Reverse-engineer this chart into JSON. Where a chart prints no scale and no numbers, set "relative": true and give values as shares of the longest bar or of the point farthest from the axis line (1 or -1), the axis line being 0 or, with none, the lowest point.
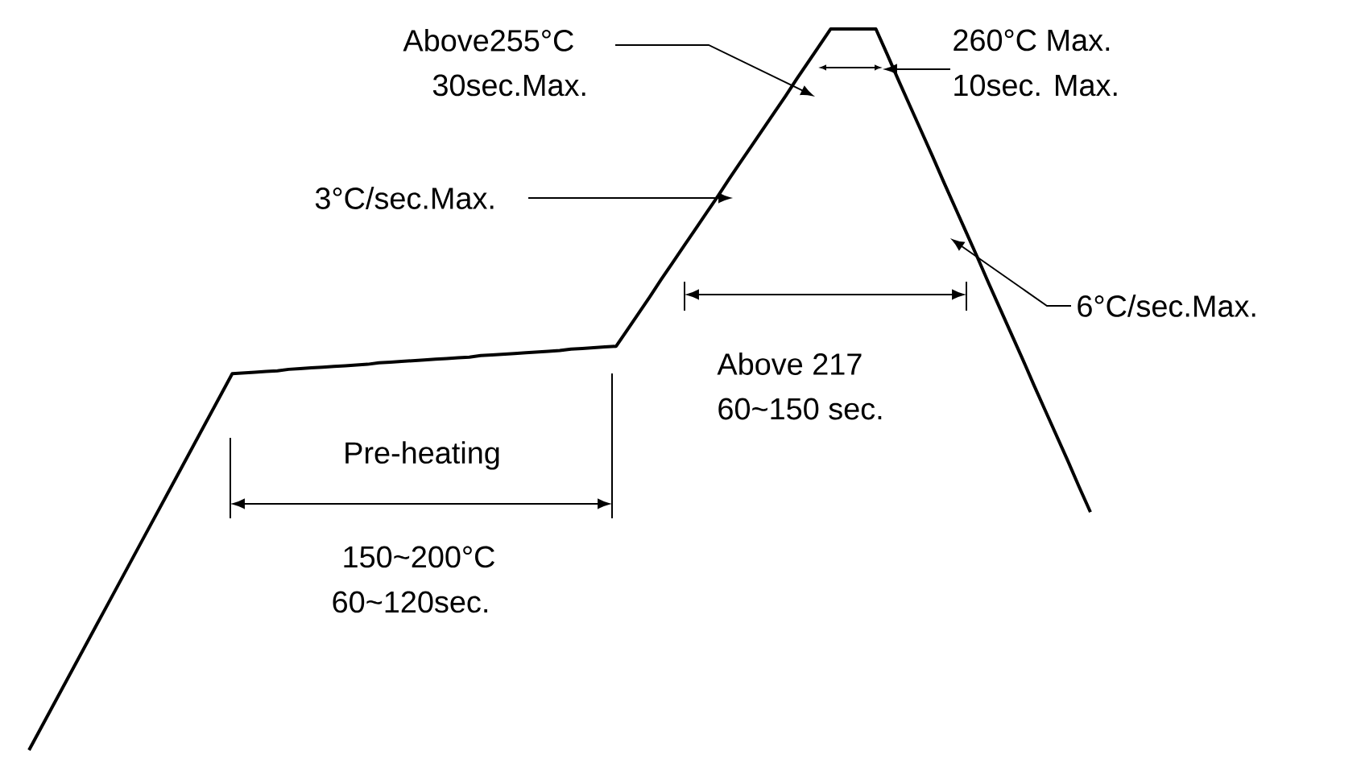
{
  "chart_data": {
    "type": "line",
    "relative": true,
    "color": "#000000",
    "categories": [
      null,
      null,
      null,
      null,
      null,
      null,
      null,
      null,
      null,
      null,
      null,
      null,
      null,
      null,
      null,
      null,
      null,
      null,
      null,
      null,
      null,
      null,
      null,
      null,
      null,
      null,
      null,
      null,
      null,
      null,
      null,
      null,
      null,
      null,
      null,
      null,
      null,
      null,
      null,
      null,
      null,
      null,
      null,
      null,
      null,
      null,
      null,
      null,
      null,
      null,
      null,
      null,
      null,
      null,
      null,
      null,
      null,
      null,
      null,
      null,
      null,
      null,
      null,
      null,
      null,
      null,
      null,
      null,
      null,
      null,
      null,
      null,
      null,
      null,
      null,
      null,
      null,
      null,
      null,
      null,
      null,
      null,
      null,
      null,
      null,
      null,
      null,
      null,
      null,
      null,
      null,
      null,
      null,
      null,
      null
    ],
    "values": [
      0,
      0.029,
      0.058,
      0.087,
      0.116,
      0.145,
      0.174,
      0.203,
      0.232,
      0.261,
      0.29,
      0.319,
      0.348,
      0.377,
      0.406,
      0.435,
      0.464,
      0.493,
      0.522,
      0.523,
      0.524,
      0.525,
      0.526,
      0.528,
      0.529,
      0.53,
      0.531,
      0.532,
      0.533,
      0.534,
      0.535,
      0.537,
      0.538,
      0.539,
      0.54,
      0.541,
      0.542,
      0.543,
      0.544,
      0.545,
      0.547,
      0.548,
      0.549,
      0.55,
      0.551,
      0.552,
      0.553,
      0.554,
      0.556,
      0.557,
      0.558,
      0.559,
      0.56,
      0.583,
      0.606,
      0.629,
      0.653,
      0.676,
      0.699,
      0.722,
      0.745,
      0.768,
      0.792,
      0.815,
      0.838,
      0.861,
      0.884,
      0.907,
      0.931,
      0.954,
      0.977,
      1,
      1,
      1,
      1,
      1,
      0.965,
      0.929,
      0.894,
      0.859,
      0.824,
      0.788,
      0.753,
      0.718,
      0.683,
      0.647,
      0.612,
      0.577,
      0.542,
      0.506,
      0.471,
      0.436,
      0.401,
      0.365,
      0.33
    ],
    "annotations": [
      "Above255°C",
      "30sec.Max.",
      "3°C/sec.Max.",
      "260°C Max.",
      "10sec. Max.",
      "6°C/sec.Max.",
      "Above 217",
      "60~150 sec.",
      "Pre-heating",
      "150~200°C",
      "60~120sec."
    ]
  }
}
